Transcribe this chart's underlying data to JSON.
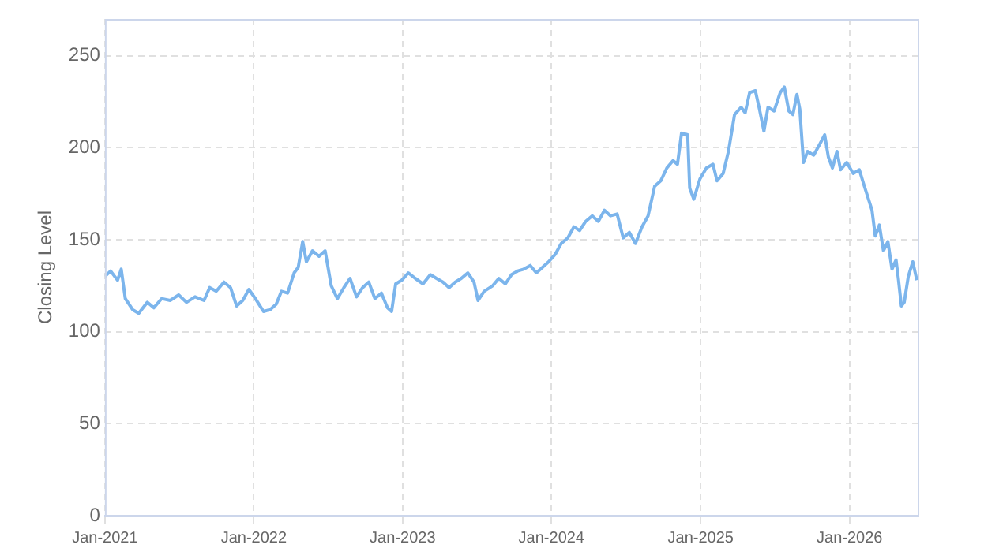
{
  "chart_data": {
    "type": "line",
    "ylabel": "Closing Level",
    "grid": true,
    "marker": "none",
    "line_style": "solid",
    "xlim": [
      "2021-01-01",
      "2026-06-17"
    ],
    "xticks": [
      {
        "value": "2021-01-01",
        "label": "Jan-2021"
      },
      {
        "value": "2022-01-01",
        "label": "Jan-2022"
      },
      {
        "value": "2023-01-01",
        "label": "Jan-2023"
      },
      {
        "value": "2024-01-01",
        "label": "Jan-2024"
      },
      {
        "value": "2025-01-01",
        "label": "Jan-2025"
      },
      {
        "value": "2026-01-01",
        "label": "Jan-2026"
      }
    ],
    "ylim": [
      0,
      270
    ],
    "yticks": [
      0,
      50,
      100,
      150,
      200,
      250
    ],
    "x": [
      "2021-01-01",
      "2021-01-15",
      "2021-02-01",
      "2021-02-10",
      "2021-02-20",
      "2021-03-10",
      "2021-03-25",
      "2021-04-15",
      "2021-05-01",
      "2021-05-20",
      "2021-06-10",
      "2021-07-01",
      "2021-07-20",
      "2021-08-10",
      "2021-09-01",
      "2021-09-15",
      "2021-10-01",
      "2021-10-20",
      "2021-11-05",
      "2021-11-20",
      "2021-12-05",
      "2021-12-20",
      "2022-01-05",
      "2022-01-25",
      "2022-02-10",
      "2022-02-25",
      "2022-03-10",
      "2022-03-25",
      "2022-04-10",
      "2022-04-20",
      "2022-05-01",
      "2022-05-10",
      "2022-05-25",
      "2022-06-10",
      "2022-06-25",
      "2022-07-10",
      "2022-07-25",
      "2022-08-10",
      "2022-08-25",
      "2022-09-10",
      "2022-09-25",
      "2022-10-10",
      "2022-10-25",
      "2022-11-10",
      "2022-11-25",
      "2022-12-05",
      "2022-12-15",
      "2022-12-30",
      "2023-01-15",
      "2023-02-01",
      "2023-02-20",
      "2023-03-10",
      "2023-03-25",
      "2023-04-10",
      "2023-04-25",
      "2023-05-10",
      "2023-05-25",
      "2023-06-10",
      "2023-06-25",
      "2023-07-05",
      "2023-07-20",
      "2023-08-10",
      "2023-08-25",
      "2023-09-10",
      "2023-09-25",
      "2023-10-10",
      "2023-10-25",
      "2023-11-10",
      "2023-11-25",
      "2023-12-10",
      "2023-12-25",
      "2024-01-10",
      "2024-01-25",
      "2024-02-10",
      "2024-02-25",
      "2024-03-10",
      "2024-03-25",
      "2024-04-10",
      "2024-04-25",
      "2024-05-10",
      "2024-05-25",
      "2024-06-10",
      "2024-06-25",
      "2024-07-10",
      "2024-07-25",
      "2024-08-10",
      "2024-08-25",
      "2024-09-10",
      "2024-09-25",
      "2024-10-10",
      "2024-10-25",
      "2024-11-05",
      "2024-11-15",
      "2024-11-30",
      "2024-12-05",
      "2024-12-15",
      "2024-12-30",
      "2025-01-15",
      "2025-01-31",
      "2025-02-10",
      "2025-02-25",
      "2025-03-10",
      "2025-03-25",
      "2025-04-10",
      "2025-04-20",
      "2025-05-01",
      "2025-05-15",
      "2025-05-25",
      "2025-06-05",
      "2025-06-15",
      "2025-06-30",
      "2025-07-15",
      "2025-07-25",
      "2025-08-05",
      "2025-08-15",
      "2025-08-25",
      "2025-09-01",
      "2025-09-10",
      "2025-09-20",
      "2025-10-05",
      "2025-10-20",
      "2025-11-01",
      "2025-11-10",
      "2025-11-20",
      "2025-12-01",
      "2025-12-10",
      "2025-12-25",
      "2026-01-10",
      "2026-01-25",
      "2026-02-05",
      "2026-02-15",
      "2026-02-25",
      "2026-03-05",
      "2026-03-15",
      "2026-03-25",
      "2026-04-05",
      "2026-04-15",
      "2026-04-25",
      "2026-05-01",
      "2026-05-08",
      "2026-05-15",
      "2026-05-25",
      "2026-06-05",
      "2026-06-15"
    ],
    "series": [
      {
        "color": "#7cb5ec",
        "values": [
          130,
          133,
          128,
          134,
          118,
          112,
          110,
          116,
          113,
          118,
          117,
          120,
          116,
          119,
          117,
          124,
          122,
          127,
          124,
          114,
          117,
          123,
          118,
          111,
          112,
          115,
          122,
          121,
          132,
          135,
          149,
          138,
          144,
          141,
          144,
          125,
          118,
          124,
          129,
          119,
          124,
          127,
          118,
          121,
          113,
          111,
          126,
          128,
          132,
          129,
          126,
          131,
          129,
          127,
          124,
          127,
          129,
          132,
          127,
          117,
          122,
          125,
          129,
          126,
          131,
          133,
          134,
          136,
          132,
          135,
          138,
          142,
          148,
          151,
          157,
          155,
          160,
          163,
          160,
          166,
          163,
          164,
          151,
          154,
          148,
          157,
          163,
          179,
          182,
          189,
          193,
          191,
          208,
          207,
          178,
          172,
          183,
          189,
          191,
          182,
          186,
          198,
          218,
          222,
          219,
          230,
          231,
          221,
          209,
          222,
          220,
          230,
          233,
          220,
          218,
          229,
          221,
          192,
          198,
          196,
          202,
          207,
          195,
          189,
          198,
          188,
          192,
          186,
          188,
          180,
          173,
          166,
          152,
          158,
          144,
          149,
          134,
          139,
          128,
          114,
          116,
          130,
          138,
          128
        ]
      }
    ]
  }
}
